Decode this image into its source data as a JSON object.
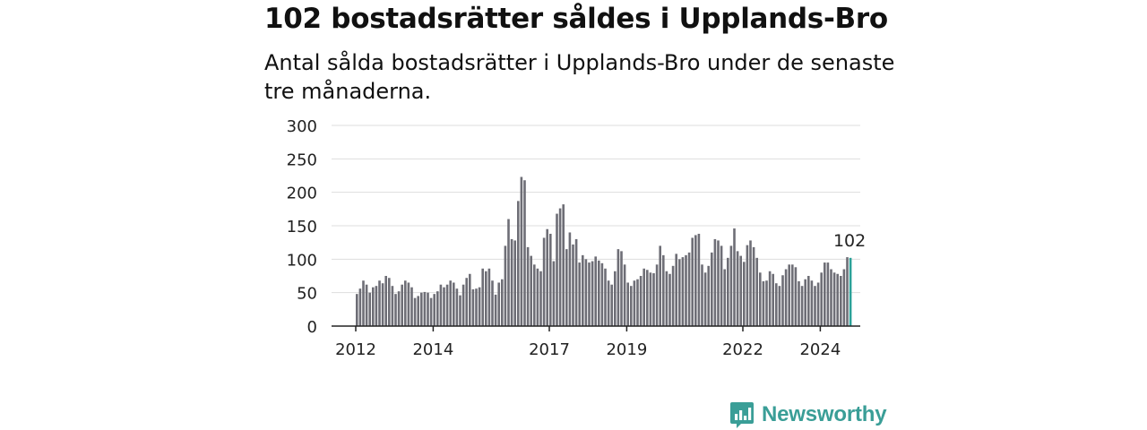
{
  "header": {
    "title": "102 bostadsrätter såldes i Upplands-Bro",
    "subtitle": "Antal sålda bostadsrätter i Upplands-Bro under de senaste tre månaderna."
  },
  "brand": {
    "name": "Newsworthy",
    "icon": "newsworthy-logo-icon",
    "color": "#3a9e97"
  },
  "chart_data": {
    "type": "bar",
    "title": "102 bostadsrätter såldes i Upplands-Bro",
    "subtitle": "Antal sålda bostadsrätter i Upplands-Bro under de senaste tre månaderna.",
    "xlabel": "",
    "ylabel": "",
    "ylim": [
      0,
      300
    ],
    "yticks": [
      0,
      50,
      100,
      150,
      200,
      250,
      300
    ],
    "x_start": "2012-01",
    "x_end": "2025-01",
    "xticks": [
      {
        "label": "2012",
        "date": "2012-01"
      },
      {
        "label": "2014",
        "date": "2014-01"
      },
      {
        "label": "2017",
        "date": "2017-01"
      },
      {
        "label": "2019",
        "date": "2019-01"
      },
      {
        "label": "2022",
        "date": "2022-01"
      },
      {
        "label": "2024",
        "date": "2024-01"
      }
    ],
    "grid": true,
    "bar_color": "#6e6e76",
    "highlight_color": "#2aa198",
    "highlight_label": "102",
    "values": [
      48,
      56,
      68,
      62,
      50,
      58,
      60,
      68,
      64,
      75,
      72,
      60,
      48,
      52,
      62,
      68,
      65,
      58,
      42,
      45,
      50,
      51,
      50,
      42,
      48,
      52,
      62,
      58,
      62,
      68,
      65,
      56,
      46,
      62,
      72,
      78,
      55,
      56,
      58,
      86,
      82,
      86,
      68,
      47,
      65,
      70,
      120,
      160,
      130,
      128,
      187,
      223,
      218,
      118,
      105,
      92,
      86,
      82,
      132,
      145,
      138,
      97,
      168,
      176,
      182,
      115,
      140,
      122,
      130,
      95,
      106,
      100,
      95,
      97,
      104,
      98,
      94,
      86,
      68,
      62,
      82,
      115,
      112,
      92,
      65,
      60,
      68,
      70,
      75,
      86,
      84,
      80,
      79,
      92,
      120,
      106,
      82,
      78,
      90,
      108,
      100,
      103,
      106,
      110,
      132,
      136,
      138,
      92,
      80,
      90,
      110,
      130,
      128,
      120,
      85,
      102,
      120,
      146,
      112,
      105,
      96,
      121,
      128,
      118,
      102,
      80,
      67,
      68,
      82,
      78,
      64,
      60,
      76,
      85,
      92,
      92,
      88,
      67,
      60,
      70,
      75,
      68,
      60,
      65,
      80,
      95,
      95,
      85,
      80,
      78,
      75,
      85,
      103,
      102
    ]
  }
}
